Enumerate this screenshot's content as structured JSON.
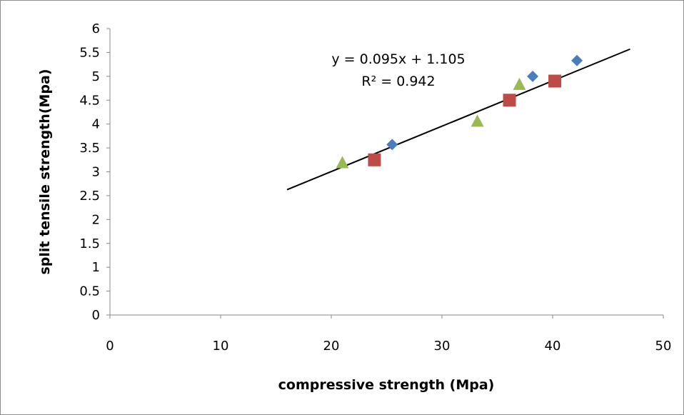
{
  "chart_data": {
    "type": "scatter",
    "xlabel": "compressive strength (Mpa)",
    "ylabel": "split tensile strength(Mpa)",
    "xlim": [
      0,
      50
    ],
    "ylim": [
      0,
      6
    ],
    "x_ticks": [
      "0",
      "10",
      "20",
      "30",
      "40",
      "50"
    ],
    "y_ticks": [
      "0",
      "0.5",
      "1",
      "1.5",
      "2",
      "2.5",
      "3",
      "3.5",
      "4",
      "4.5",
      "5",
      "5.5",
      "6"
    ],
    "grid": false,
    "legend": "none",
    "series": [
      {
        "marker": "diamond",
        "color": "#4a7ebb",
        "points": [
          [
            25.5,
            3.57
          ],
          [
            38.2,
            5.0
          ],
          [
            42.2,
            5.33
          ]
        ]
      },
      {
        "marker": "square",
        "color": "#be4b48",
        "points": [
          [
            23.9,
            3.25
          ],
          [
            36.1,
            4.5
          ],
          [
            40.2,
            4.9
          ]
        ]
      },
      {
        "marker": "triangle",
        "color": "#98b954",
        "points": [
          [
            21.0,
            3.18
          ],
          [
            33.2,
            4.05
          ],
          [
            37.0,
            4.82
          ]
        ]
      }
    ],
    "trendline": {
      "slope": 0.095,
      "intercept": 1.105,
      "x_range": [
        16,
        47
      ],
      "color": "#000000",
      "equation": "y = 0.095x + 1.105",
      "r_squared": "R² = 0.942"
    }
  }
}
